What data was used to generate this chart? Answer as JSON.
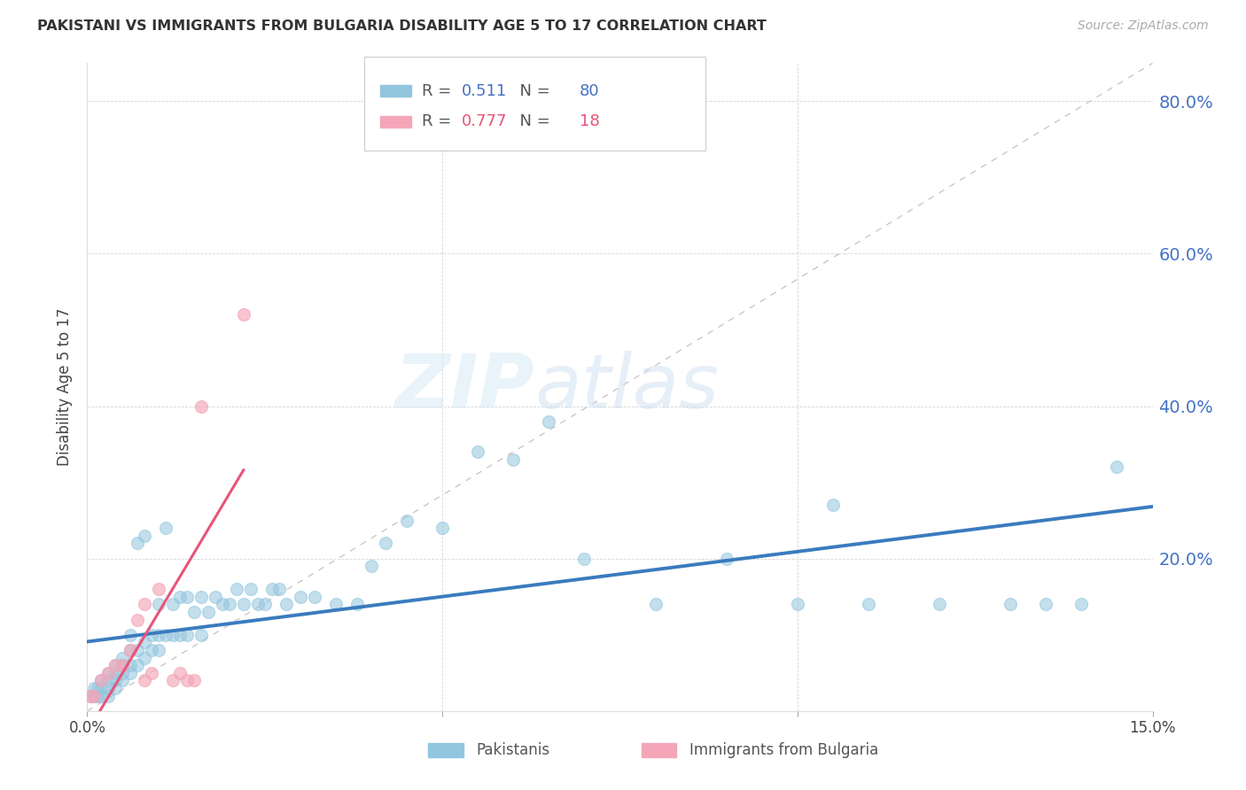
{
  "title": "PAKISTANI VS IMMIGRANTS FROM BULGARIA DISABILITY AGE 5 TO 17 CORRELATION CHART",
  "source": "Source: ZipAtlas.com",
  "ylabel_label": "Disability Age 5 to 17",
  "xlim": [
    0.0,
    0.15
  ],
  "ylim": [
    0.0,
    0.85
  ],
  "ytick_labels_right": [
    "20.0%",
    "40.0%",
    "60.0%",
    "80.0%"
  ],
  "ytick_vals_right": [
    0.2,
    0.4,
    0.6,
    0.8
  ],
  "blue_R": "0.511",
  "blue_N": "80",
  "pink_R": "0.777",
  "pink_N": "18",
  "blue_color": "#92c5de",
  "pink_color": "#f4a6b8",
  "blue_line_color": "#3a7bbf",
  "pink_line_color": "#e8547a",
  "diag_line_color": "#c8c8c8",
  "watermark_zip": "ZIP",
  "watermark_atlas": "atlas",
  "legend_label_blue": "Pakistanis",
  "legend_label_pink": "Immigrants from Bulgaria",
  "blue_scatter_x": [
    0.0005,
    0.001,
    0.001,
    0.0015,
    0.0015,
    0.002,
    0.002,
    0.002,
    0.003,
    0.003,
    0.003,
    0.003,
    0.004,
    0.004,
    0.004,
    0.004,
    0.005,
    0.005,
    0.005,
    0.005,
    0.006,
    0.006,
    0.006,
    0.006,
    0.007,
    0.007,
    0.007,
    0.008,
    0.008,
    0.008,
    0.009,
    0.009,
    0.01,
    0.01,
    0.01,
    0.011,
    0.011,
    0.012,
    0.012,
    0.013,
    0.013,
    0.014,
    0.014,
    0.015,
    0.016,
    0.016,
    0.017,
    0.018,
    0.019,
    0.02,
    0.021,
    0.022,
    0.023,
    0.024,
    0.025,
    0.026,
    0.027,
    0.028,
    0.03,
    0.032,
    0.035,
    0.038,
    0.04,
    0.042,
    0.045,
    0.05,
    0.055,
    0.06,
    0.065,
    0.07,
    0.08,
    0.09,
    0.1,
    0.105,
    0.11,
    0.12,
    0.13,
    0.135,
    0.14,
    0.145
  ],
  "blue_scatter_y": [
    0.02,
    0.02,
    0.03,
    0.02,
    0.03,
    0.02,
    0.03,
    0.04,
    0.02,
    0.03,
    0.04,
    0.05,
    0.03,
    0.04,
    0.05,
    0.06,
    0.04,
    0.05,
    0.06,
    0.07,
    0.05,
    0.06,
    0.08,
    0.1,
    0.06,
    0.08,
    0.22,
    0.07,
    0.09,
    0.23,
    0.08,
    0.1,
    0.08,
    0.1,
    0.14,
    0.1,
    0.24,
    0.1,
    0.14,
    0.1,
    0.15,
    0.1,
    0.15,
    0.13,
    0.1,
    0.15,
    0.13,
    0.15,
    0.14,
    0.14,
    0.16,
    0.14,
    0.16,
    0.14,
    0.14,
    0.16,
    0.16,
    0.14,
    0.15,
    0.15,
    0.14,
    0.14,
    0.19,
    0.22,
    0.25,
    0.24,
    0.34,
    0.33,
    0.38,
    0.2,
    0.14,
    0.2,
    0.14,
    0.27,
    0.14,
    0.14,
    0.14,
    0.14,
    0.14,
    0.32
  ],
  "pink_scatter_x": [
    0.0005,
    0.001,
    0.002,
    0.003,
    0.004,
    0.005,
    0.006,
    0.007,
    0.008,
    0.008,
    0.009,
    0.01,
    0.012,
    0.013,
    0.014,
    0.015,
    0.016,
    0.022
  ],
  "pink_scatter_y": [
    0.02,
    0.02,
    0.04,
    0.05,
    0.06,
    0.06,
    0.08,
    0.12,
    0.14,
    0.04,
    0.05,
    0.16,
    0.04,
    0.05,
    0.04,
    0.04,
    0.4,
    0.52
  ]
}
